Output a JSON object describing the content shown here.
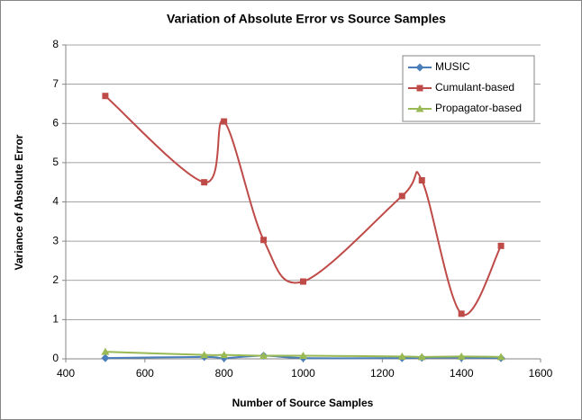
{
  "chart_data": {
    "type": "scatter_smooth",
    "title": "Variation of Absolute Error vs Source Samples",
    "x_label": "Number of Source Samples",
    "y_label": "Variance of Absolute Error",
    "x": [
      500,
      750,
      800,
      900,
      1000,
      1250,
      1300,
      1400,
      1500
    ],
    "series": [
      {
        "name": "MUSIC",
        "color": "#4a7ebb",
        "marker": "diamond",
        "values": [
          0.02,
          0.05,
          0.02,
          0.08,
          0.02,
          0.02,
          0.03,
          0.03,
          0.02
        ]
      },
      {
        "name": "Cumulant-based",
        "color": "#be4b48",
        "marker": "square",
        "values": [
          6.7,
          4.5,
          6.05,
          3.03,
          1.97,
          4.15,
          4.55,
          1.15,
          2.88
        ]
      },
      {
        "name": "Propagator-based",
        "color": "#98b954",
        "marker": "triangle",
        "values": [
          0.18,
          0.1,
          0.1,
          0.08,
          0.08,
          0.06,
          0.05,
          0.06,
          0.05
        ]
      }
    ],
    "xlim": [
      400,
      1600
    ],
    "xticks": [
      400,
      600,
      800,
      1000,
      1200,
      1400,
      1600
    ],
    "ylim": [
      0,
      8
    ],
    "yticks": [
      0,
      1,
      2,
      3,
      4,
      5,
      6,
      7,
      8
    ],
    "grid": true,
    "legend": "top-right"
  }
}
